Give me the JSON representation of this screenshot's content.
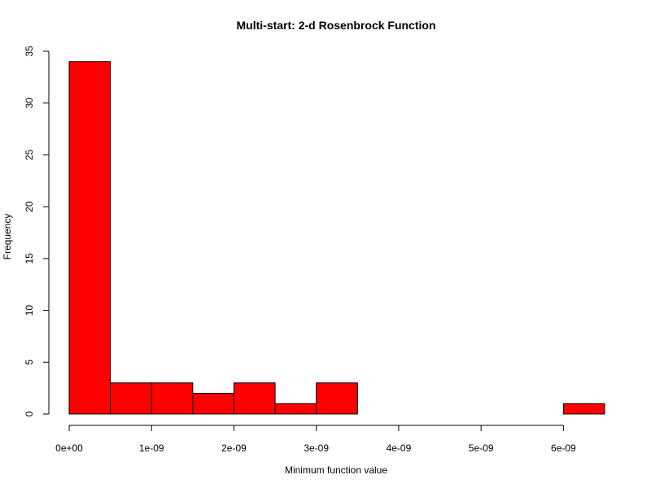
{
  "chart_data": {
    "type": "bar",
    "title": "Multi-start: 2-d Rosenbrock Function",
    "xlabel": "Minimum function value",
    "ylabel": "Frequency",
    "bins": [
      {
        "start": 0.0,
        "end": 5e-10,
        "count": 34
      },
      {
        "start": 5e-10,
        "end": 1e-09,
        "count": 3
      },
      {
        "start": 1e-09,
        "end": 1.5e-09,
        "count": 3
      },
      {
        "start": 1.5e-09,
        "end": 2e-09,
        "count": 2
      },
      {
        "start": 2e-09,
        "end": 2.5e-09,
        "count": 3
      },
      {
        "start": 2.5e-09,
        "end": 3e-09,
        "count": 1
      },
      {
        "start": 3e-09,
        "end": 3.5e-09,
        "count": 3
      },
      {
        "start": 3.5e-09,
        "end": 4e-09,
        "count": 0
      },
      {
        "start": 4e-09,
        "end": 4.5e-09,
        "count": 0
      },
      {
        "start": 4.5e-09,
        "end": 5e-09,
        "count": 0
      },
      {
        "start": 5e-09,
        "end": 5.5e-09,
        "count": 0
      },
      {
        "start": 5.5e-09,
        "end": 6e-09,
        "count": 0
      },
      {
        "start": 6e-09,
        "end": 6.5e-09,
        "count": 1
      }
    ],
    "xlim": [
      0,
      6.5e-09
    ],
    "ylim": [
      0,
      35
    ],
    "xticks": [
      {
        "value": 0,
        "label": "0e+00"
      },
      {
        "value": 1e-09,
        "label": "1e-09"
      },
      {
        "value": 2e-09,
        "label": "2e-09"
      },
      {
        "value": 3e-09,
        "label": "3e-09"
      },
      {
        "value": 4e-09,
        "label": "4e-09"
      },
      {
        "value": 5e-09,
        "label": "5e-09"
      },
      {
        "value": 6e-09,
        "label": "6e-09"
      }
    ],
    "yticks": [
      {
        "value": 0,
        "label": "0"
      },
      {
        "value": 5,
        "label": "5"
      },
      {
        "value": 10,
        "label": "10"
      },
      {
        "value": 15,
        "label": "15"
      },
      {
        "value": 20,
        "label": "20"
      },
      {
        "value": 25,
        "label": "25"
      },
      {
        "value": 30,
        "label": "30"
      },
      {
        "value": 35,
        "label": "35"
      }
    ],
    "bar_color": "#ff0000",
    "bar_border_color": "#000000",
    "grid": false,
    "legend": "none"
  }
}
